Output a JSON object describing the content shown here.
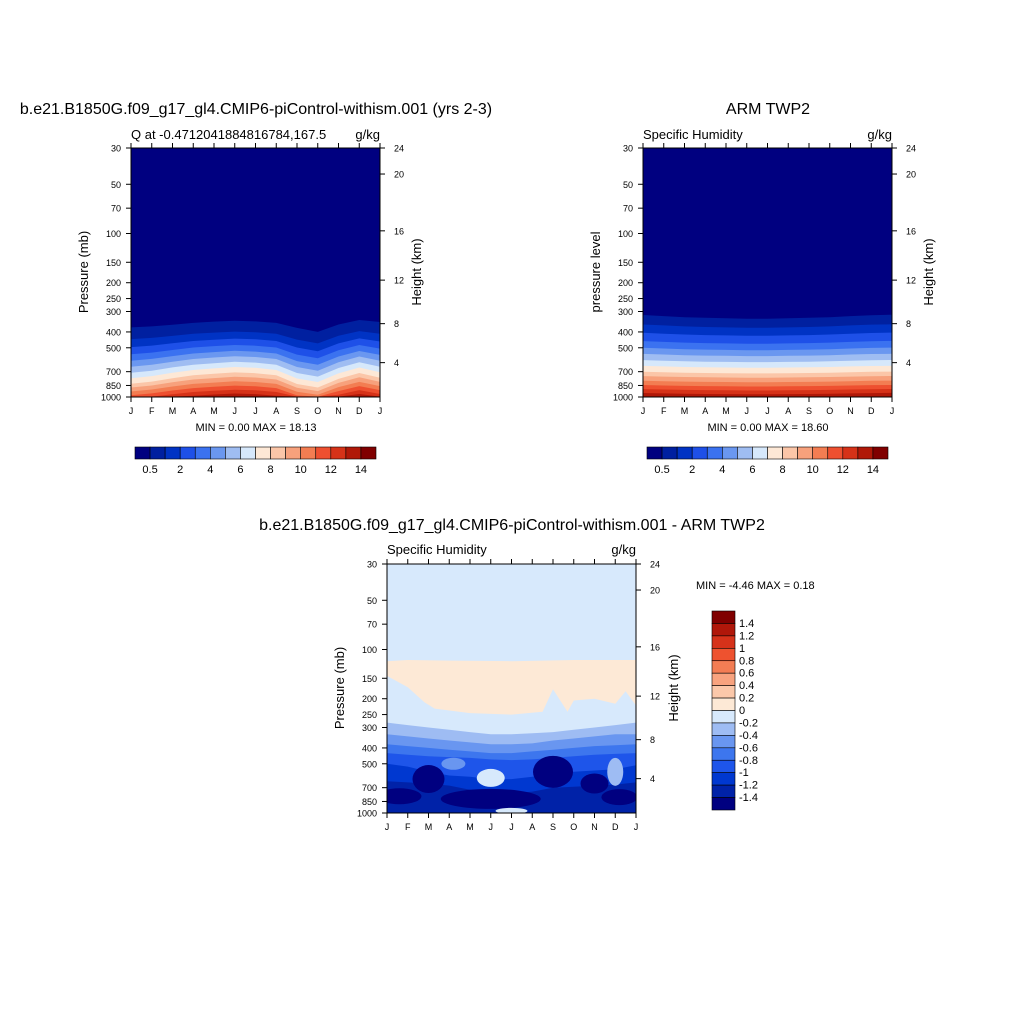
{
  "colors": {
    "background": "#ffffff",
    "palette_full": [
      "#000080",
      "#0020a0",
      "#0033c4",
      "#1e50e8",
      "#3b72f0",
      "#6a97f0",
      "#9fbdf2",
      "#d6e8fb",
      "#fde8d6",
      "#fbc6a8",
      "#f7a17c",
      "#f37d52",
      "#ee5030",
      "#d63218",
      "#b01808",
      "#800000"
    ],
    "palette_diff": [
      "#000080",
      "#0022a8",
      "#0038d0",
      "#1e55ea",
      "#3d76ee",
      "#6996f0",
      "#9ebcf3",
      "#d7e9fc",
      "#fde9d6",
      "#fbc8aa",
      "#f8a37f",
      "#f37d54",
      "#ee522f",
      "#d6321a",
      "#b0170a",
      "#800000"
    ]
  },
  "panels": {
    "p1": {
      "title": "b.e21.B1850G.f09_g17_gl4.CMIP6-piControl-withism.001 (yrs 2-3)",
      "left_label": "Q at -0.4712041884816784,167.5",
      "right_label": "g/kg",
      "ylabel": "Pressure (mb)",
      "y2label": "Height (km)",
      "stats": "MIN =   0.00 MAX =  18.13"
    },
    "p2": {
      "title": "ARM TWP2",
      "left_label": "Specific Humidity",
      "right_label": "g/kg",
      "ylabel": "pressure level",
      "y2label": "Height (km)",
      "stats": "MIN =   0.00 MAX =  18.60"
    },
    "p3": {
      "title": "b.e21.B1850G.f09_g17_gl4.CMIP6-piControl-withism.001 - ARM TWP2",
      "left_label": "Specific Humidity",
      "right_label": "g/kg",
      "ylabel": "Pressure (mb)",
      "y2label": "Height (km)",
      "stats": "MIN =  -4.46 MAX =   0.18"
    }
  },
  "colorbar_full": {
    "labels": [
      "0.5",
      "2",
      "4",
      "6",
      "8",
      "10",
      "12",
      "14"
    ]
  },
  "colorbar_diff": {
    "labels": [
      "1.4",
      "1.2",
      "1",
      "0.8",
      "0.6",
      "0.4",
      "0.2",
      "0",
      "-0.2",
      "-0.4",
      "-0.6",
      "-0.8",
      "-1",
      "-1.2",
      "-1.4"
    ]
  },
  "chart_data": [
    {
      "type": "heatmap",
      "title": "b.e21.B1850G.f09_g17_gl4.CMIP6-piControl-withism.001 (yrs 2-3)",
      "variable": "Q at -0.4712041884816784,167.5",
      "units": "g/kg",
      "x": [
        "J",
        "F",
        "M",
        "A",
        "M",
        "J",
        "J",
        "A",
        "S",
        "O",
        "N",
        "D",
        "J"
      ],
      "y_pressure_ticks": [
        30,
        50,
        70,
        100,
        150,
        200,
        250,
        300,
        400,
        500,
        700,
        850,
        1000
      ],
      "y_height_ticks": [
        24,
        20,
        16,
        12,
        8,
        4
      ],
      "ylabel": "Pressure (mb)",
      "y2label": "Height (km)",
      "contour_levels": [
        0.5,
        1,
        2,
        3,
        4,
        5,
        6,
        7,
        8,
        9,
        10,
        11,
        12,
        13,
        14
      ],
      "min": 0.0,
      "max": 18.13
    },
    {
      "type": "heatmap",
      "title": "ARM TWP2",
      "variable": "Specific Humidity",
      "units": "g/kg",
      "x": [
        "J",
        "F",
        "M",
        "A",
        "M",
        "J",
        "J",
        "A",
        "S",
        "O",
        "N",
        "D",
        "J"
      ],
      "y_pressure_ticks": [
        30,
        50,
        70,
        100,
        150,
        200,
        250,
        300,
        400,
        500,
        700,
        850,
        1000
      ],
      "y_height_ticks": [
        24,
        20,
        16,
        12,
        8,
        4
      ],
      "ylabel": "pressure level",
      "y2label": "Height (km)",
      "contour_levels": [
        0.5,
        1,
        2,
        3,
        4,
        5,
        6,
        7,
        8,
        9,
        10,
        11,
        12,
        13,
        14
      ],
      "min": 0.0,
      "max": 18.6
    },
    {
      "type": "heatmap",
      "title": "b.e21.B1850G.f09_g17_gl4.CMIP6-piControl-withism.001 - ARM TWP2",
      "variable": "Specific Humidity",
      "units": "g/kg",
      "x": [
        "J",
        "F",
        "M",
        "A",
        "M",
        "J",
        "J",
        "A",
        "S",
        "O",
        "N",
        "D",
        "J"
      ],
      "y_pressure_ticks": [
        30,
        50,
        70,
        100,
        150,
        200,
        250,
        300,
        400,
        500,
        700,
        850,
        1000
      ],
      "y_height_ticks": [
        24,
        20,
        16,
        12,
        8,
        4
      ],
      "ylabel": "Pressure (mb)",
      "y2label": "Height (km)",
      "contour_levels": [
        -1.4,
        -1.2,
        -1,
        -0.8,
        -0.6,
        -0.4,
        -0.2,
        0,
        0.2,
        0.4,
        0.6,
        0.8,
        1,
        1.2,
        1.4
      ],
      "min": -4.46,
      "max": 0.18
    }
  ]
}
